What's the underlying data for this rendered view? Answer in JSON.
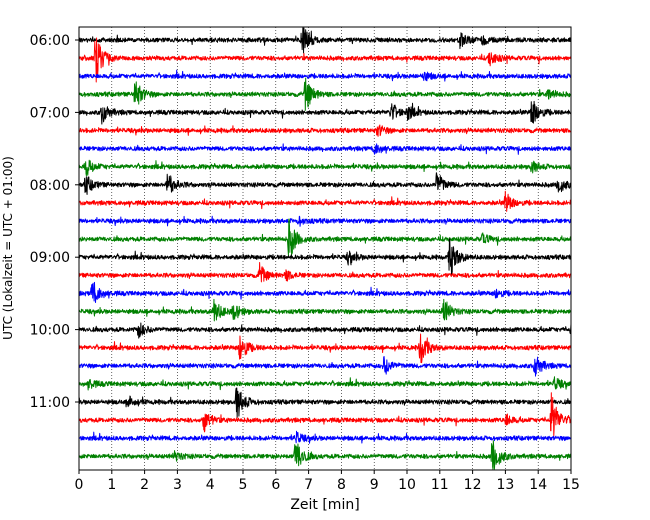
{
  "chart_data": {
    "type": "line",
    "title": "",
    "xlabel": "Zeit  [min]",
    "ylabel": "UTC (Lokalzeit = UTC + 01:00)",
    "xlim": [
      0,
      15
    ],
    "x_ticks": [
      0,
      1,
      2,
      3,
      4,
      5,
      6,
      7,
      8,
      9,
      10,
      11,
      12,
      13,
      14,
      15
    ],
    "x_tick_labels": [
      "0",
      "1",
      "2",
      "3",
      "4",
      "5",
      "6",
      "7",
      "8",
      "9",
      "10",
      "11",
      "12",
      "13",
      "14",
      "15"
    ],
    "y_ticks": [
      "06:00",
      "07:00",
      "08:00",
      "09:00",
      "10:00",
      "11:00"
    ],
    "trace_interval_minutes": 15,
    "grid_x": true,
    "grid_style": "dotted",
    "colors": [
      "#000000",
      "#ff0000",
      "#0000ff",
      "#008000"
    ],
    "series": [
      {
        "start": "06:00",
        "color": "#000000",
        "events": [
          {
            "t": 6.8,
            "amp": 1.6
          },
          {
            "t": 11.6,
            "amp": 0.6
          },
          {
            "t": 12.3,
            "amp": 0.4
          }
        ]
      },
      {
        "start": "06:15",
        "color": "#ff0000",
        "events": [
          {
            "t": 0.5,
            "amp": 2.2
          },
          {
            "t": 12.5,
            "amp": 0.7
          }
        ]
      },
      {
        "start": "06:30",
        "color": "#0000ff",
        "events": [
          {
            "t": 10.5,
            "amp": 0.4
          }
        ]
      },
      {
        "start": "06:45",
        "color": "#008000",
        "events": [
          {
            "t": 1.7,
            "amp": 1.3
          },
          {
            "t": 6.9,
            "amp": 1.5
          },
          {
            "t": 14.3,
            "amp": 0.5
          }
        ]
      },
      {
        "start": "07:00",
        "color": "#000000",
        "events": [
          {
            "t": 0.7,
            "amp": 0.9
          },
          {
            "t": 9.5,
            "amp": 0.8
          },
          {
            "t": 10.0,
            "amp": 0.6
          },
          {
            "t": 13.8,
            "amp": 1.3
          }
        ]
      },
      {
        "start": "07:15",
        "color": "#ff0000",
        "events": [
          {
            "t": 9.1,
            "amp": 0.5
          }
        ]
      },
      {
        "start": "07:30",
        "color": "#0000ff",
        "events": [
          {
            "t": 9.0,
            "amp": 0.5
          }
        ]
      },
      {
        "start": "07:45",
        "color": "#008000",
        "events": [
          {
            "t": 0.2,
            "amp": 0.8
          },
          {
            "t": 13.8,
            "amp": 0.5
          }
        ]
      },
      {
        "start": "08:00",
        "color": "#000000",
        "events": [
          {
            "t": 0.2,
            "amp": 0.8
          },
          {
            "t": 2.7,
            "amp": 1.0
          },
          {
            "t": 10.9,
            "amp": 1.1
          },
          {
            "t": 14.6,
            "amp": 0.8
          }
        ]
      },
      {
        "start": "08:15",
        "color": "#ff0000",
        "events": [
          {
            "t": 13.0,
            "amp": 0.9
          }
        ]
      },
      {
        "start": "08:30",
        "color": "#0000ff",
        "events": [
          {
            "t": 6.7,
            "amp": 0.3
          }
        ]
      },
      {
        "start": "08:45",
        "color": "#008000",
        "events": [
          {
            "t": 6.4,
            "amp": 1.8
          },
          {
            "t": 12.3,
            "amp": 0.4
          }
        ]
      },
      {
        "start": "09:00",
        "color": "#000000",
        "events": [
          {
            "t": 11.3,
            "amp": 1.8
          },
          {
            "t": 8.2,
            "amp": 0.5
          }
        ]
      },
      {
        "start": "09:15",
        "color": "#ff0000",
        "events": [
          {
            "t": 5.5,
            "amp": 0.9
          },
          {
            "t": 6.3,
            "amp": 0.4
          }
        ]
      },
      {
        "start": "09:30",
        "color": "#0000ff",
        "events": [
          {
            "t": 0.4,
            "amp": 1.2
          },
          {
            "t": 12.7,
            "amp": 0.4
          }
        ]
      },
      {
        "start": "09:45",
        "color": "#008000",
        "events": [
          {
            "t": 4.1,
            "amp": 1.1
          },
          {
            "t": 4.7,
            "amp": 0.7
          },
          {
            "t": 11.1,
            "amp": 1.2
          }
        ]
      },
      {
        "start": "10:00",
        "color": "#000000",
        "events": [
          {
            "t": 1.8,
            "amp": 0.7
          },
          {
            "t": 15.0,
            "amp": 0.6
          }
        ]
      },
      {
        "start": "10:15",
        "color": "#ff0000",
        "events": [
          {
            "t": 4.9,
            "amp": 1.3
          },
          {
            "t": 10.4,
            "amp": 1.5
          }
        ]
      },
      {
        "start": "10:30",
        "color": "#0000ff",
        "events": [
          {
            "t": 9.3,
            "amp": 0.8
          },
          {
            "t": 13.9,
            "amp": 1.0
          }
        ]
      },
      {
        "start": "10:45",
        "color": "#008000",
        "events": [
          {
            "t": 0.3,
            "amp": 0.4
          },
          {
            "t": 14.5,
            "amp": 0.5
          }
        ]
      },
      {
        "start": "11:00",
        "color": "#000000",
        "events": [
          {
            "t": 4.8,
            "amp": 1.6
          },
          {
            "t": 1.5,
            "amp": 0.5
          }
        ]
      },
      {
        "start": "11:15",
        "color": "#ff0000",
        "events": [
          {
            "t": 3.8,
            "amp": 1.0
          },
          {
            "t": 14.4,
            "amp": 2.2
          },
          {
            "t": 13.0,
            "amp": 0.5
          }
        ]
      },
      {
        "start": "11:30",
        "color": "#0000ff",
        "events": [
          {
            "t": 6.6,
            "amp": 0.5
          }
        ]
      },
      {
        "start": "11:45",
        "color": "#008000",
        "events": [
          {
            "t": 6.6,
            "amp": 1.6
          },
          {
            "t": 12.6,
            "amp": 1.7
          },
          {
            "t": 2.9,
            "amp": 0.4
          }
        ]
      }
    ]
  }
}
